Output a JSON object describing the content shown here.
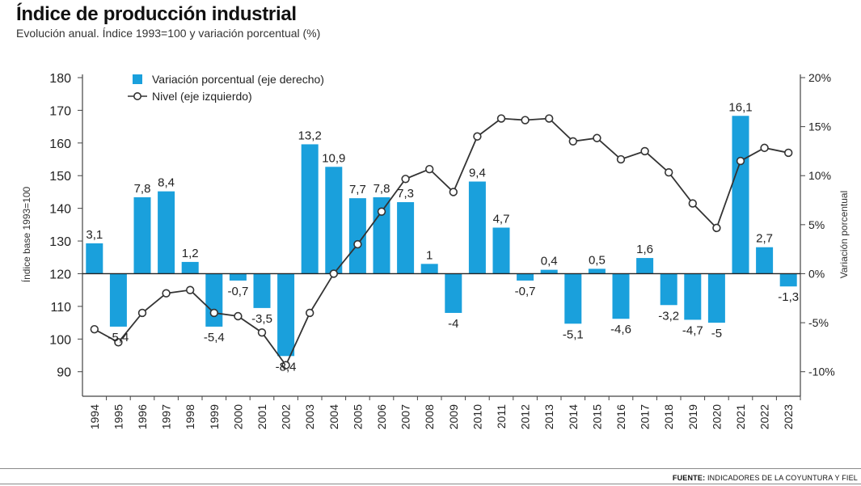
{
  "header": {
    "title": "Índice de producción industrial",
    "subtitle": "Evolución anual. Índice 1993=100 y variación porcentual (%)"
  },
  "footer": {
    "source_label": "FUENTE:",
    "source_text": "INDICADORES DE LA COYUNTURA Y FIEL"
  },
  "colors": {
    "bar": "#1aa0dc",
    "line": "#333333",
    "axis": "#444444"
  },
  "chart_data": {
    "type": "bar",
    "categories": [
      "1994",
      "1995",
      "1996",
      "1997",
      "1998",
      "1999",
      "2000",
      "2001",
      "2002",
      "2003",
      "2004",
      "2005",
      "2006",
      "2007",
      "2008",
      "2009",
      "2010",
      "2011",
      "2012",
      "2013",
      "2014",
      "2015",
      "2016",
      "2017",
      "2018",
      "2019",
      "2020",
      "2021",
      "2022",
      "2023"
    ],
    "series": [
      {
        "name": "Variación porcentual (eje derecho)",
        "type": "bar",
        "axis": "right",
        "values": [
          3.1,
          -5.4,
          7.8,
          8.4,
          1.2,
          -5.4,
          -0.7,
          -3.5,
          -8.4,
          13.2,
          10.9,
          7.7,
          7.8,
          7.3,
          1,
          -4,
          9.4,
          4.7,
          -0.7,
          0.4,
          -5.1,
          0.5,
          -4.6,
          1.6,
          -3.2,
          -4.7,
          -5,
          16.1,
          2.7,
          -1.3
        ],
        "labels": [
          "3,1",
          "-5,4",
          "7,8",
          "8,4",
          "1,2",
          "-5,4",
          "-0,7",
          "-3,5",
          "-8,4",
          "13,2",
          "10,9",
          "7,7",
          "7,8",
          "7,3",
          "1",
          "-4",
          "9,4",
          "4,7",
          "-0,7",
          "0,4",
          "-5,1",
          "0,5",
          "-4,6",
          "1,6",
          "-3,2",
          "-4,7",
          "-5",
          "16,1",
          "2,7",
          "-1,3"
        ]
      },
      {
        "name": "Nivel (eje izquierdo)",
        "type": "line",
        "axis": "left",
        "values": [
          103,
          99,
          108,
          114,
          115,
          108,
          107,
          102,
          92,
          108,
          120,
          129,
          139,
          149,
          152,
          145,
          162,
          167.5,
          167,
          167.5,
          160.5,
          161.5,
          155,
          157.5,
          151,
          141.5,
          134,
          154.5,
          158.5,
          157
        ]
      }
    ],
    "ylabel_left": "Índice base 1993=100",
    "ylabel_right": "Variación porcentual",
    "ylim_left": [
      82.5,
      180
    ],
    "ylim_right": [
      -12.5,
      20
    ],
    "yticks_left": [
      "180",
      "170",
      "160",
      "150",
      "140",
      "130",
      "120",
      "110",
      "100",
      "90"
    ],
    "yticks_right": [
      "20%",
      "15%",
      "10%",
      "5%",
      "0%",
      "-5%",
      "-10%"
    ],
    "yticks_right_values": [
      20,
      15,
      10,
      5,
      0,
      -5,
      -10
    ],
    "yticks_left_values": [
      180,
      170,
      160,
      150,
      140,
      130,
      120,
      110,
      100,
      90
    ],
    "legend_placement": "top-left",
    "grid": false
  }
}
